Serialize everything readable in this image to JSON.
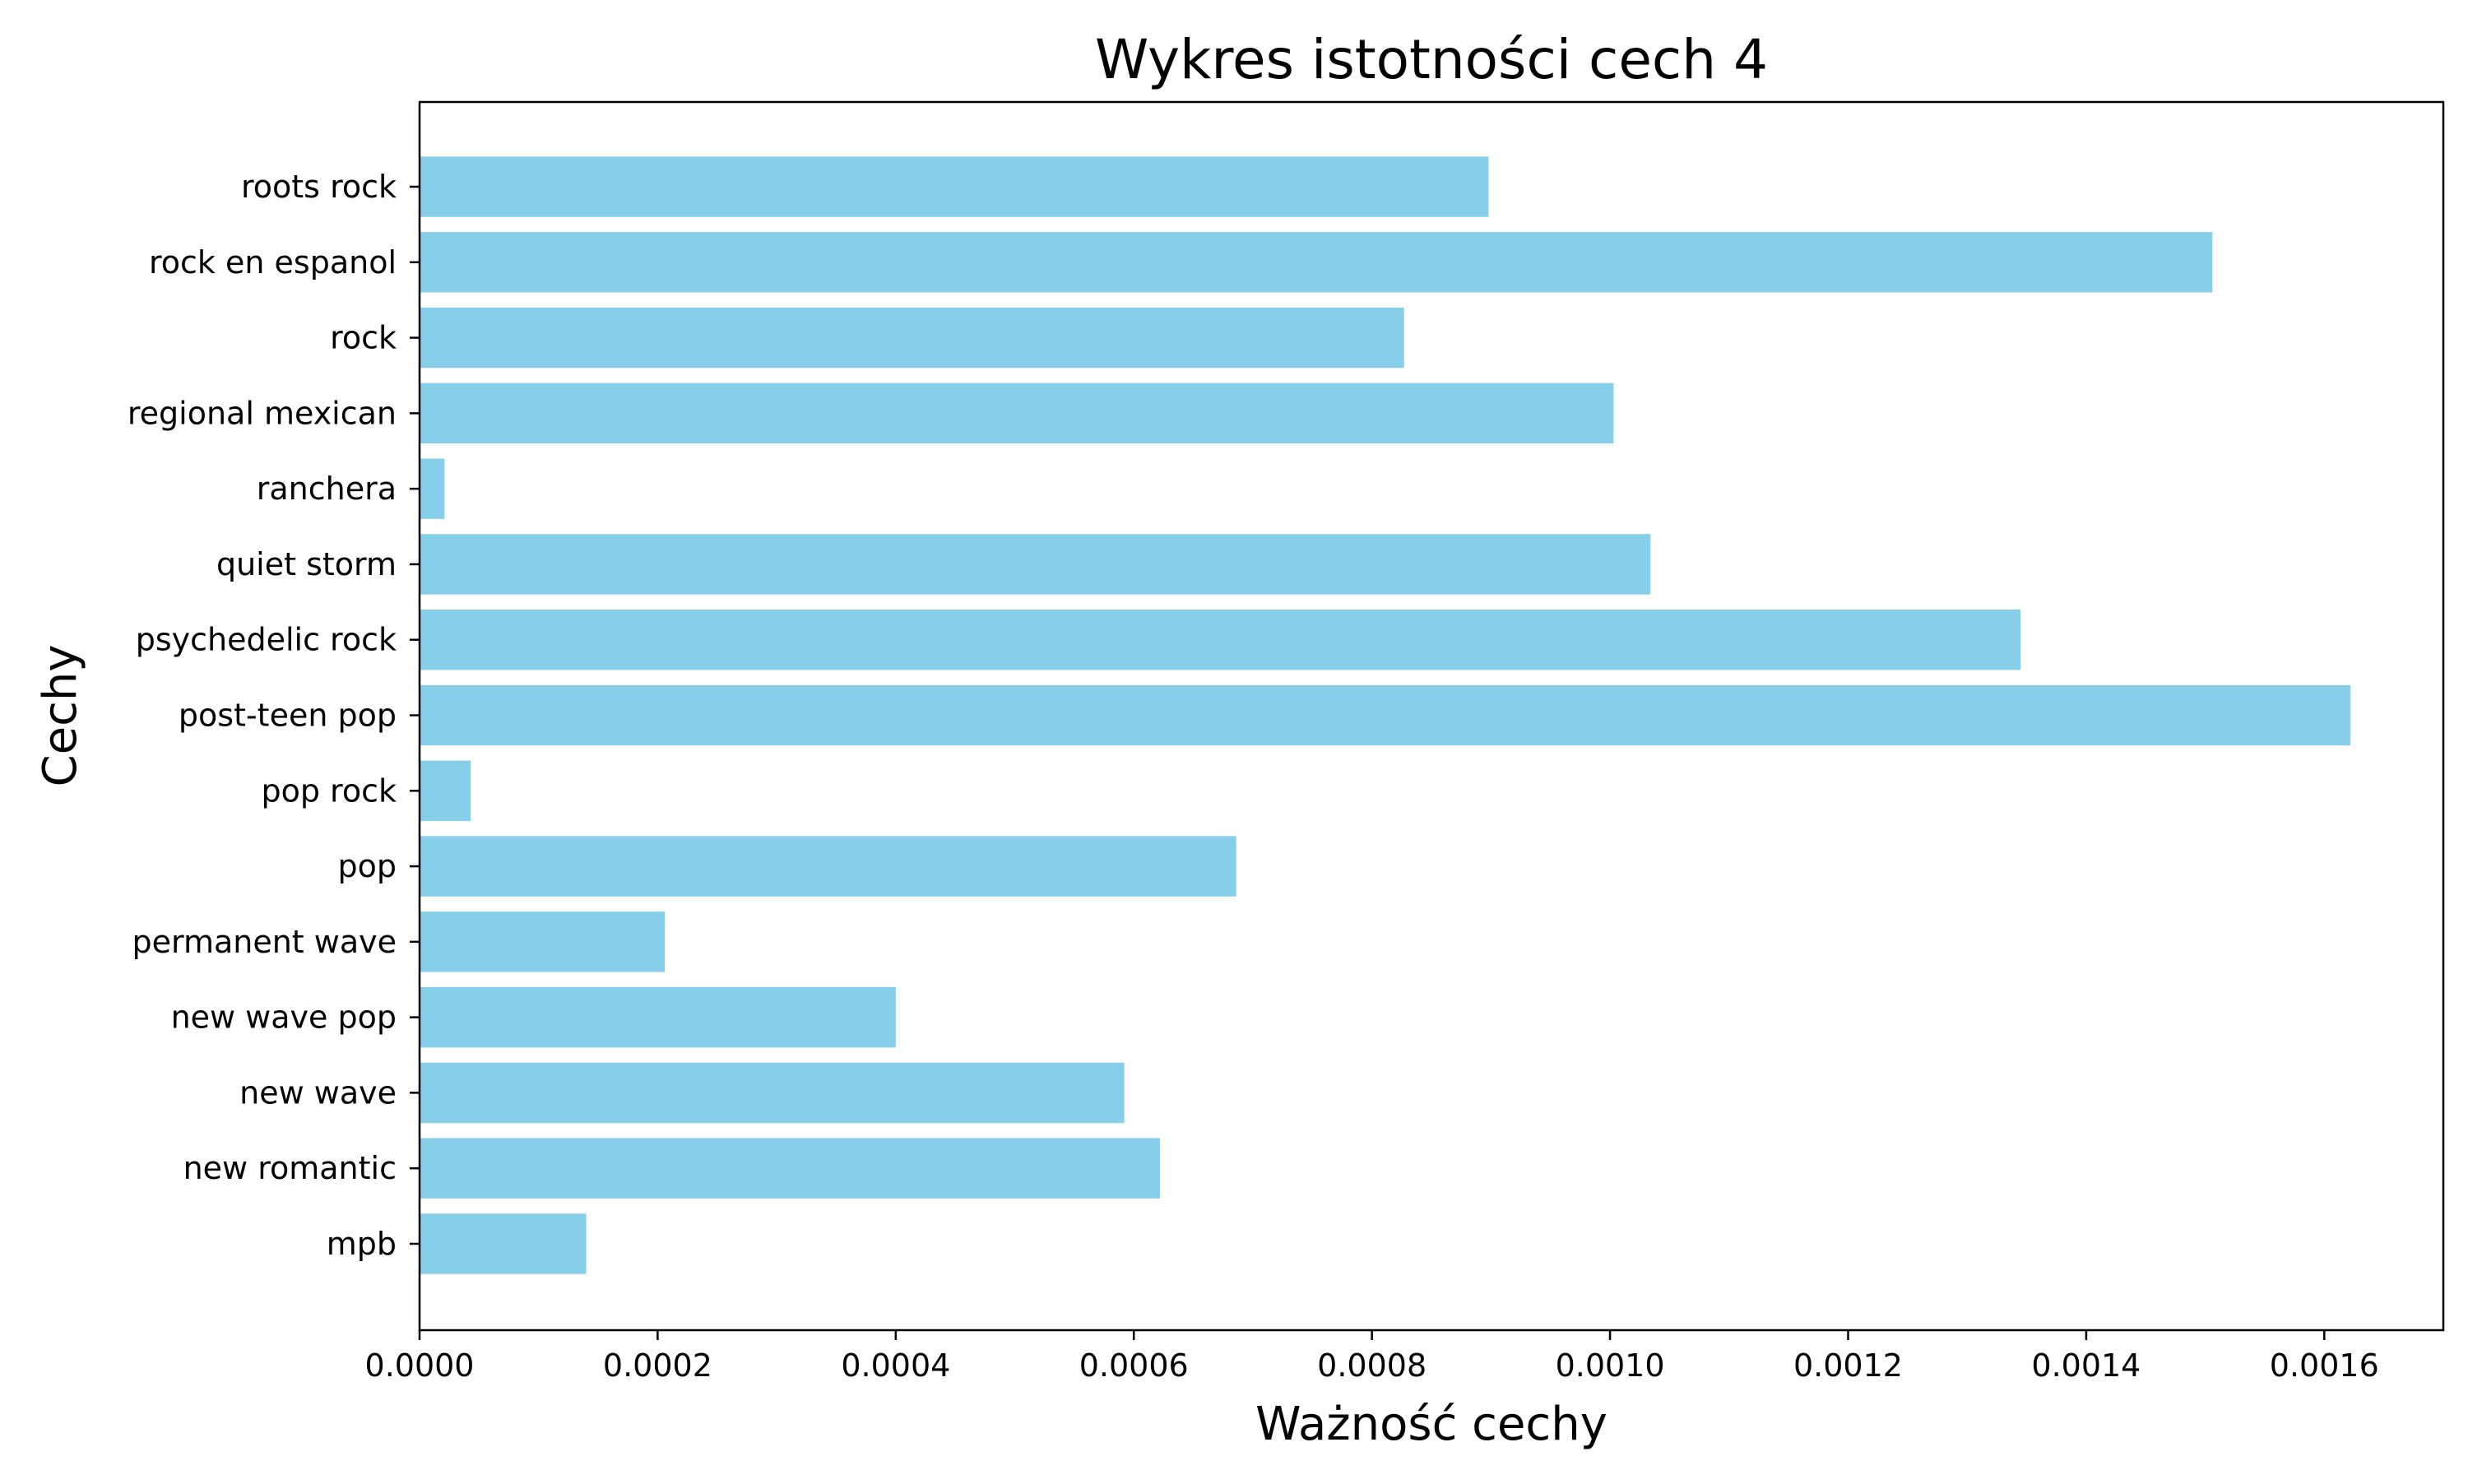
{
  "chart_data": {
    "type": "bar",
    "orientation": "horizontal",
    "title": "Wykres istotności cech 4",
    "xlabel": "Ważność cechy",
    "ylabel": "Cechy",
    "categories": [
      "mpb",
      "new romantic",
      "new wave",
      "new wave pop",
      "permanent wave",
      "pop",
      "pop rock",
      "post-teen pop",
      "psychedelic rock",
      "quiet storm",
      "ranchera",
      "regional mexican",
      "rock",
      "rock en espanol",
      "roots rock"
    ],
    "values": [
      0.00014,
      0.000622,
      0.000592,
      0.0004,
      0.000206,
      0.000686,
      4.3e-05,
      0.001622,
      0.001345,
      0.001034,
      2.1e-05,
      0.001003,
      0.000827,
      0.001506,
      0.000898
    ],
    "xlim": [
      0,
      0.0017
    ],
    "xticks": [
      "0.0000",
      "0.0002",
      "0.0004",
      "0.0006",
      "0.0008",
      "0.0010",
      "0.0012",
      "0.0014",
      "0.0016"
    ],
    "bar_color": "#87CEEB",
    "grid": false,
    "legend": "none"
  }
}
